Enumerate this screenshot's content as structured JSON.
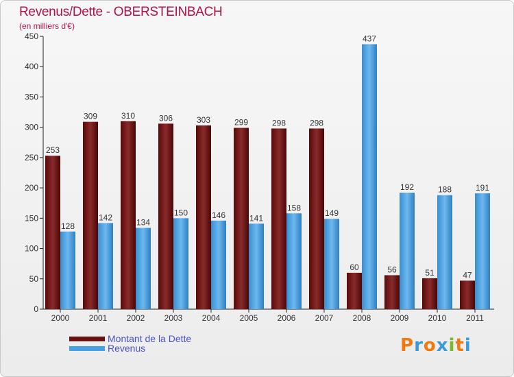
{
  "header": {
    "title": "Revenus/Dette - OBERSTEINBACH",
    "subtitle": "(en milliers d'€)"
  },
  "legend": {
    "items": [
      {
        "label": "Montant de la Dette",
        "color": "#6b1010"
      },
      {
        "label": "Revenus",
        "color": "#4a9fe0"
      }
    ]
  },
  "logo": {
    "text": "Proxiti",
    "letters": [
      {
        "ch": "P",
        "color": "#f07a10"
      },
      {
        "ch": "r",
        "color": "#3a9bd8"
      },
      {
        "ch": "o",
        "color": "#f07a10"
      },
      {
        "ch": "x",
        "color": "#3a9bd8"
      },
      {
        "ch": "i",
        "color": "#7bb82a"
      },
      {
        "ch": "t",
        "color": "#f07a10"
      },
      {
        "ch": "i",
        "color": "#3a9bd8"
      }
    ]
  },
  "chart_data": {
    "type": "bar",
    "title": "Revenus/Dette - OBERSTEINBACH",
    "subtitle": "(en milliers d'€)",
    "categories": [
      "2000",
      "2001",
      "2002",
      "2003",
      "2004",
      "2005",
      "2006",
      "2007",
      "2008",
      "2009",
      "2010",
      "2011"
    ],
    "series": [
      {
        "name": "Montant de la Dette",
        "color": "#6b1010",
        "values": [
          253,
          309,
          310,
          306,
          303,
          299,
          298,
          298,
          60,
          56,
          51,
          47
        ]
      },
      {
        "name": "Revenus",
        "color": "#4a9fe0",
        "values": [
          128,
          142,
          134,
          150,
          146,
          141,
          158,
          149,
          437,
          192,
          188,
          191
        ]
      }
    ],
    "ylim": [
      0,
      450
    ],
    "yticks": [
      0,
      50,
      100,
      150,
      200,
      250,
      300,
      350,
      400,
      450
    ],
    "grid": false,
    "legend": "bottom-left"
  }
}
